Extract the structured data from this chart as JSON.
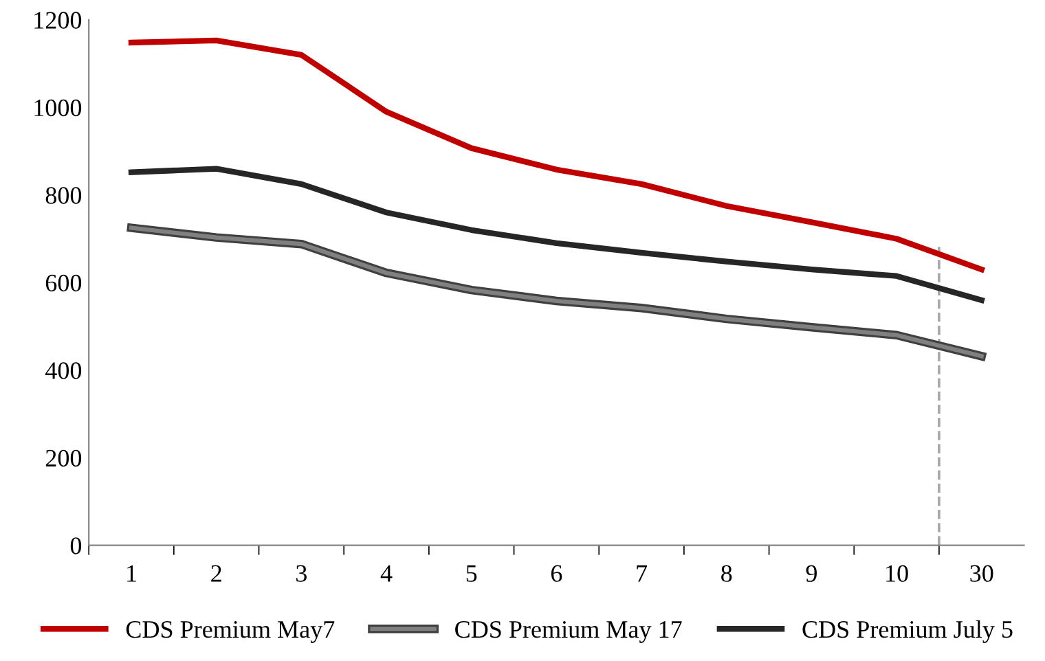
{
  "chart_data": {
    "type": "line",
    "categories": [
      "1",
      "2",
      "3",
      "4",
      "5",
      "6",
      "7",
      "8",
      "9",
      "10",
      "30"
    ],
    "series": [
      {
        "name": "CDS Premium May7",
        "color": "#c00000",
        "values": [
          1148,
          1153,
          1120,
          990,
          907,
          858,
          825,
          775,
          738,
          700,
          630
        ]
      },
      {
        "name": "CDS Premium May 17",
        "color": "#808080",
        "values": [
          725,
          703,
          688,
          622,
          583,
          558,
          542,
          517,
          498,
          480,
          432
        ]
      },
      {
        "name": "CDS Premium July 5",
        "color": "#262626",
        "values": [
          852,
          860,
          825,
          760,
          720,
          690,
          668,
          648,
          630,
          615,
          560
        ]
      }
    ],
    "ylim": [
      0,
      1200
    ],
    "yticks": [
      0,
      200,
      400,
      600,
      800,
      1000,
      1200
    ],
    "grid": false,
    "legend": "bottom",
    "marker": "none",
    "line_style": "solid"
  }
}
